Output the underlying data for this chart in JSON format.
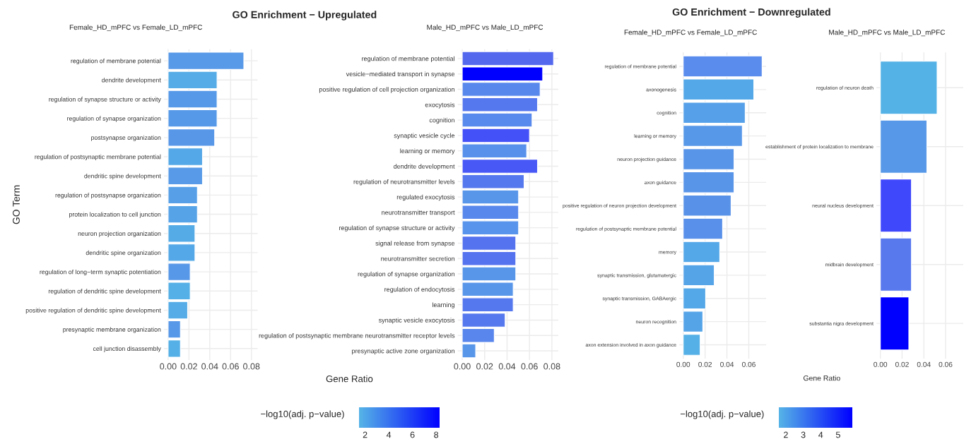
{
  "chart_data": [
    {
      "type": "bar",
      "orientation": "horizontal",
      "annotations": [
        "GO Enrichment − Upregulated",
        "Gene Ratio"
      ],
      "subtitle": "Female_HD_mPFC vs Female_LD_mPFC",
      "ylabel": "GO Term",
      "clabel": "−log10(adj. p−value)",
      "clim": [
        1.5,
        8.3
      ],
      "cticks": [
        2,
        4,
        6,
        8
      ],
      "grid": true,
      "xlim": [
        -0.004,
        0.086
      ],
      "xticks": [
        {
          "value": 0,
          "label": "0.00"
        },
        {
          "value": 0.02,
          "label": "0.02"
        },
        {
          "value": 0.04,
          "label": "0.04"
        },
        {
          "value": 0.06,
          "label": "0.06"
        },
        {
          "value": 0.08,
          "label": "0.08"
        }
      ],
      "categories": [
        "regulation of membrane potential",
        "dendrite development",
        "regulation of synapse structure or activity",
        "regulation of synapse organization",
        "postsynapse organization",
        "regulation of postsynaptic membrane potential",
        "dendritic spine development",
        "regulation of postsynapse organization",
        "protein localization to cell junction",
        "neuron projection organization",
        "dendritic spine organization",
        "regulation of long−term synaptic potentiation",
        "regulation of dendritic spine development",
        "positive regulation of dendritic spine development",
        "presynaptic membrane organization",
        "cell junction disassembly"
      ],
      "values": [
        0.0727,
        0.047,
        0.047,
        0.047,
        0.0447,
        0.033,
        0.033,
        0.0281,
        0.0281,
        0.0258,
        0.0258,
        0.0212,
        0.0212,
        0.0187,
        0.0118,
        0.0118
      ],
      "colors": [
        "#5899E8",
        "#55ACE6",
        "#5699E8",
        "#5699E8",
        "#5897E8",
        "#55A8E7",
        "#589AE8",
        "#57A0E8",
        "#56A3E7",
        "#55ABE6",
        "#55A8E7",
        "#5898E8",
        "#54B0E6",
        "#55ACE6",
        "#5898E8",
        "#54B0E6"
      ]
    },
    {
      "type": "bar",
      "orientation": "horizontal",
      "subtitle": "Male_HD_mPFC vs Male_LD_mPFC",
      "grid": true,
      "xlim": [
        -0.004,
        0.0857
      ],
      "xticks": [
        {
          "value": 0,
          "label": "0.00"
        },
        {
          "value": 0.02,
          "label": "0.02"
        },
        {
          "value": 0.04,
          "label": "0.04"
        },
        {
          "value": 0.06,
          "label": "0.06"
        },
        {
          "value": 0.08,
          "label": "0.08"
        }
      ],
      "categories": [
        "regulation of membrane potential",
        "vesicle−mediated transport in synapse",
        "positive regulation of cell projection organization",
        "exocytosis",
        "cognition",
        "synaptic vesicle cycle",
        "learning or memory",
        "dendrite development",
        "regulation of neurotransmitter levels",
        "regulated exocytosis",
        "neurotransmitter transport",
        "regulation of synapse structure or activity",
        "signal release from synapse",
        "neurotransmitter secretion",
        "regulation of synapse organization",
        "regulation of endocytosis",
        "learning",
        "synaptic vesicle exocytosis",
        "regulation of postsynaptic membrane neurotransmitter receptor levels",
        "presynaptic active zone organization"
      ],
      "values": [
        0.0815,
        0.0718,
        0.0695,
        0.0672,
        0.0623,
        0.06,
        0.0575,
        0.0672,
        0.0552,
        0.0503,
        0.0503,
        0.0503,
        0.0478,
        0.0478,
        0.0478,
        0.0455,
        0.0455,
        0.0383,
        0.0286,
        0.012
      ],
      "colors": [
        "#5468EE",
        "#0000FF",
        "#5888EC",
        "#5678EE",
        "#5889EC",
        "#4450F8",
        "#5891EB",
        "#4858F6",
        "#5678EE",
        "#5896EA",
        "#5888EC",
        "#5894EB",
        "#5572EF",
        "#5572EF",
        "#5896EA",
        "#5896EA",
        "#5678EE",
        "#5678EE",
        "#5886EC",
        "#5896EA"
      ]
    },
    {
      "type": "bar",
      "orientation": "horizontal",
      "annotations": [
        "GO Enrichment − Downregulated",
        "Gene Ratio"
      ],
      "subtitle": "Female_HD_mPFC vs Female_LD_mPFC",
      "clabel": "−log10(adj. p−value)",
      "clim": [
        1.6,
        5.8
      ],
      "cticks": [
        2,
        3,
        4,
        5
      ],
      "grid": true,
      "xlim": [
        -0.0036,
        0.0759
      ],
      "xticks": [
        {
          "value": 0,
          "label": "0.00"
        },
        {
          "value": 0.02,
          "label": "0.02"
        },
        {
          "value": 0.04,
          "label": "0.04"
        },
        {
          "value": 0.06,
          "label": "0.06"
        }
      ],
      "categories": [
        "regulation of membrane potential",
        "axonogenesis",
        "cognition",
        "learning or memory",
        "neuron projection guidance",
        "axon guidance",
        "positive regulation of neuron projection development",
        "regulation of postsynaptic membrane potential",
        "memory",
        "synaptic transmission, glutamatergic",
        "synaptic transmission, GABAergic",
        "neuron recognition",
        "axon extension involved in axon guidance"
      ],
      "values": [
        0.0722,
        0.0646,
        0.0567,
        0.0541,
        0.0465,
        0.0465,
        0.0438,
        0.036,
        0.0334,
        0.0284,
        0.0205,
        0.0179,
        0.0155
      ],
      "colors": [
        "#5A8CEE",
        "#54A8E8",
        "#55A0E8",
        "#5898E8",
        "#5894E8",
        "#5894E8",
        "#5892E8",
        "#5890EA",
        "#54A8E8",
        "#55A4E8",
        "#55A8E8",
        "#55A4E8",
        "#54B0E6"
      ]
    },
    {
      "type": "bar",
      "orientation": "horizontal",
      "subtitle": "Male_HD_mPFC vs Male_LD_mPFC",
      "grid": true,
      "xlim": [
        -0.0036,
        0.0763
      ],
      "xticks": [
        {
          "value": 0,
          "label": "0.00"
        },
        {
          "value": 0.02,
          "label": "0.02"
        },
        {
          "value": 0.04,
          "label": "0.04"
        },
        {
          "value": 0.06,
          "label": "0.06"
        }
      ],
      "categories": [
        "regulation of neuron death",
        "establishment of protein localization to membrane",
        "neural nucleus development",
        "midbrain development",
        "substantia nigra development"
      ],
      "values": [
        0.0522,
        0.0428,
        0.0286,
        0.0286,
        0.0262
      ],
      "colors": [
        "#55B2E6",
        "#5898E8",
        "#4048FC",
        "#5878EE",
        "#0000FF"
      ]
    }
  ]
}
